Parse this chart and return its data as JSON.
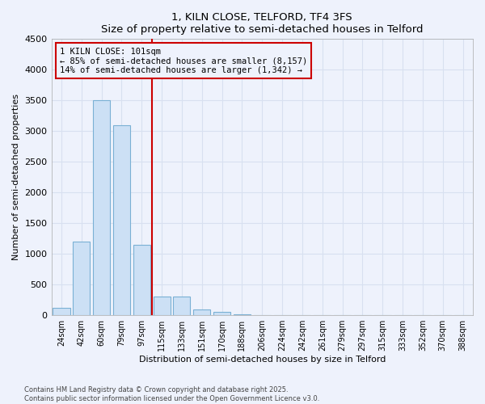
{
  "title": "1, KILN CLOSE, TELFORD, TF4 3FS",
  "subtitle": "Size of property relative to semi-detached houses in Telford",
  "xlabel": "Distribution of semi-detached houses by size in Telford",
  "ylabel": "Number of semi-detached properties",
  "categories": [
    "24sqm",
    "42sqm",
    "60sqm",
    "79sqm",
    "97sqm",
    "115sqm",
    "133sqm",
    "151sqm",
    "170sqm",
    "188sqm",
    "206sqm",
    "224sqm",
    "242sqm",
    "261sqm",
    "279sqm",
    "297sqm",
    "315sqm",
    "333sqm",
    "352sqm",
    "370sqm",
    "388sqm"
  ],
  "values": [
    120,
    1200,
    3500,
    3100,
    1150,
    300,
    300,
    100,
    60,
    10,
    3,
    2,
    1,
    0,
    0,
    0,
    0,
    0,
    0,
    0,
    0
  ],
  "bar_color": "#cce0f5",
  "bar_edge_color": "#7ab0d4",
  "vline_index": 4,
  "vline_color": "#cc0000",
  "annotation_line1": "1 KILN CLOSE: 101sqm",
  "annotation_line2": "← 85% of semi-detached houses are smaller (8,157)",
  "annotation_line3": "14% of semi-detached houses are larger (1,342) →",
  "annotation_box_color": "#cc0000",
  "ylim": [
    0,
    4500
  ],
  "yticks": [
    0,
    500,
    1000,
    1500,
    2000,
    2500,
    3000,
    3500,
    4000,
    4500
  ],
  "footer_line1": "Contains HM Land Registry data © Crown copyright and database right 2025.",
  "footer_line2": "Contains public sector information licensed under the Open Government Licence v3.0.",
  "bg_color": "#eef2fc",
  "grid_color": "#d8e0f0",
  "spine_color": "#aaaaaa"
}
